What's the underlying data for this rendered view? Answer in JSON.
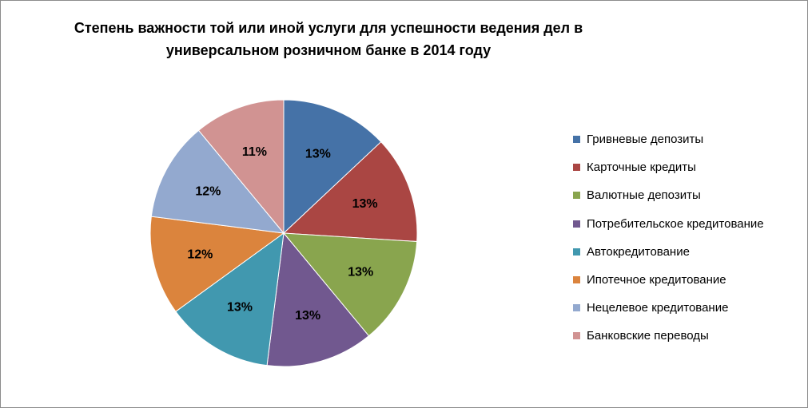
{
  "chart_data": {
    "type": "pie",
    "title_lines": [
      "Степень важности той или иной услуги для успешности ведения дел в",
      "универсальном розничном банке в 2014 году"
    ],
    "categories": [
      "Гривневые депозиты",
      "Карточные кредиты",
      "Валютные депозиты",
      "Потребительское кредитование",
      "Автокредитование",
      "Ипотечное кредитование",
      "Нецелевое кредитование",
      "Банковские переводы"
    ],
    "values": [
      13,
      13,
      13,
      13,
      13,
      12,
      12,
      11
    ],
    "data_labels": [
      "13%",
      "13%",
      "13%",
      "13%",
      "13%",
      "12%",
      "12%",
      "11%"
    ],
    "colors": [
      "#4572a7",
      "#aa4643",
      "#89a54e",
      "#71588f",
      "#4198af",
      "#db843d",
      "#93a9cf",
      "#d19392"
    ],
    "legend_position": "right"
  }
}
